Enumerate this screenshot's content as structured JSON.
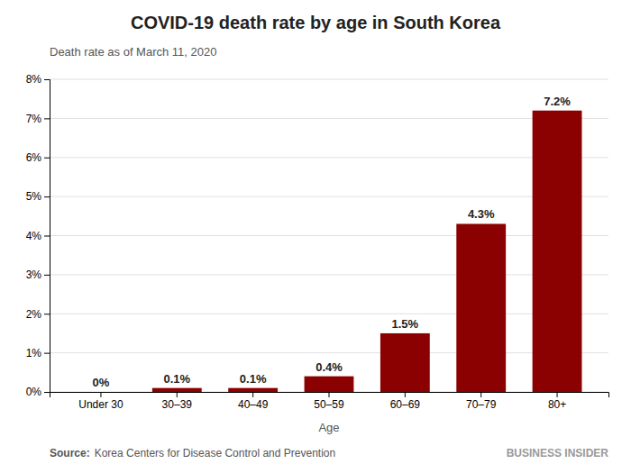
{
  "chart_data": {
    "type": "bar",
    "title": "COVID-19 death rate by age in South Korea",
    "subtitle": "Death rate as of March 11, 2020",
    "xlabel": "Age",
    "categories": [
      "Under 30",
      "30–39",
      "40–49",
      "50–59",
      "60–69",
      "70–79",
      "80+"
    ],
    "values": [
      0.0,
      0.1,
      0.1,
      0.4,
      1.5,
      4.3,
      7.2
    ],
    "value_labels": [
      "0%",
      "0.1%",
      "0.1%",
      "0.4%",
      "1.5%",
      "4.3%",
      "7.2%"
    ],
    "data_labels": true,
    "color": "#8B0000",
    "ylim": [
      0,
      8
    ],
    "yticks": [
      {
        "value": 0,
        "label": "0%"
      },
      {
        "value": 1,
        "label": "1%"
      },
      {
        "value": 2,
        "label": "2%"
      },
      {
        "value": 3,
        "label": "3%"
      },
      {
        "value": 4,
        "label": "4%"
      },
      {
        "value": 5,
        "label": "5%"
      },
      {
        "value": 6,
        "label": "6%"
      },
      {
        "value": 7,
        "label": "7%"
      },
      {
        "value": 8,
        "label": "8%"
      }
    ],
    "grid": true,
    "annotations": [
      "Source:",
      "Korea Centers for Disease Control and Prevention",
      "BUSINESS INSIDER"
    ]
  }
}
